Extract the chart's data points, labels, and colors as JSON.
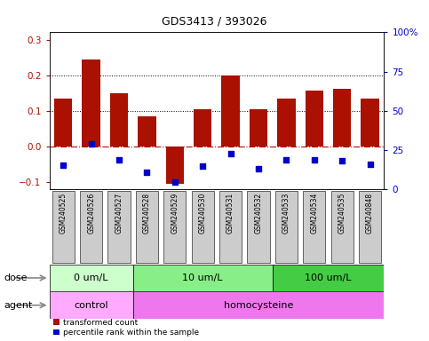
{
  "title": "GDS3413 / 393026",
  "samples": [
    "GSM240525",
    "GSM240526",
    "GSM240527",
    "GSM240528",
    "GSM240529",
    "GSM240530",
    "GSM240531",
    "GSM240532",
    "GSM240533",
    "GSM240534",
    "GSM240535",
    "GSM240848"
  ],
  "bar_values": [
    0.135,
    0.245,
    0.15,
    0.085,
    -0.105,
    0.105,
    0.2,
    0.105,
    0.135,
    0.158,
    0.162,
    0.135
  ],
  "scatter_values": [
    -0.052,
    0.008,
    -0.038,
    -0.072,
    -0.1,
    -0.055,
    -0.02,
    -0.062,
    -0.038,
    -0.038,
    -0.04,
    -0.05
  ],
  "bar_color": "#aa1100",
  "scatter_color": "#0000cc",
  "ylim_left": [
    -0.12,
    0.32
  ],
  "ylim_right": [
    0,
    100
  ],
  "yticks_left": [
    -0.1,
    0.0,
    0.1,
    0.2,
    0.3
  ],
  "yticks_right": [
    0,
    25,
    50,
    75,
    100
  ],
  "ytick_labels_right": [
    "0",
    "25",
    "50",
    "75",
    "100%"
  ],
  "gridlines": [
    0.1,
    0.2
  ],
  "hline_y": 0.0,
  "dose_groups": [
    {
      "label": "0 um/L",
      "start": 0,
      "end": 3,
      "color": "#ccffcc"
    },
    {
      "label": "10 um/L",
      "start": 3,
      "end": 8,
      "color": "#88ee88"
    },
    {
      "label": "100 um/L",
      "start": 8,
      "end": 12,
      "color": "#44cc44"
    }
  ],
  "agent_groups": [
    {
      "label": "control",
      "start": 0,
      "end": 3,
      "color": "#ffaaff"
    },
    {
      "label": "homocysteine",
      "start": 3,
      "end": 12,
      "color": "#ee77ee"
    }
  ],
  "dose_label": "dose",
  "agent_label": "agent",
  "legend_bar": "transformed count",
  "legend_scatter": "percentile rank within the sample",
  "bg_color": "#ffffff",
  "tick_bg_color": "#cccccc"
}
